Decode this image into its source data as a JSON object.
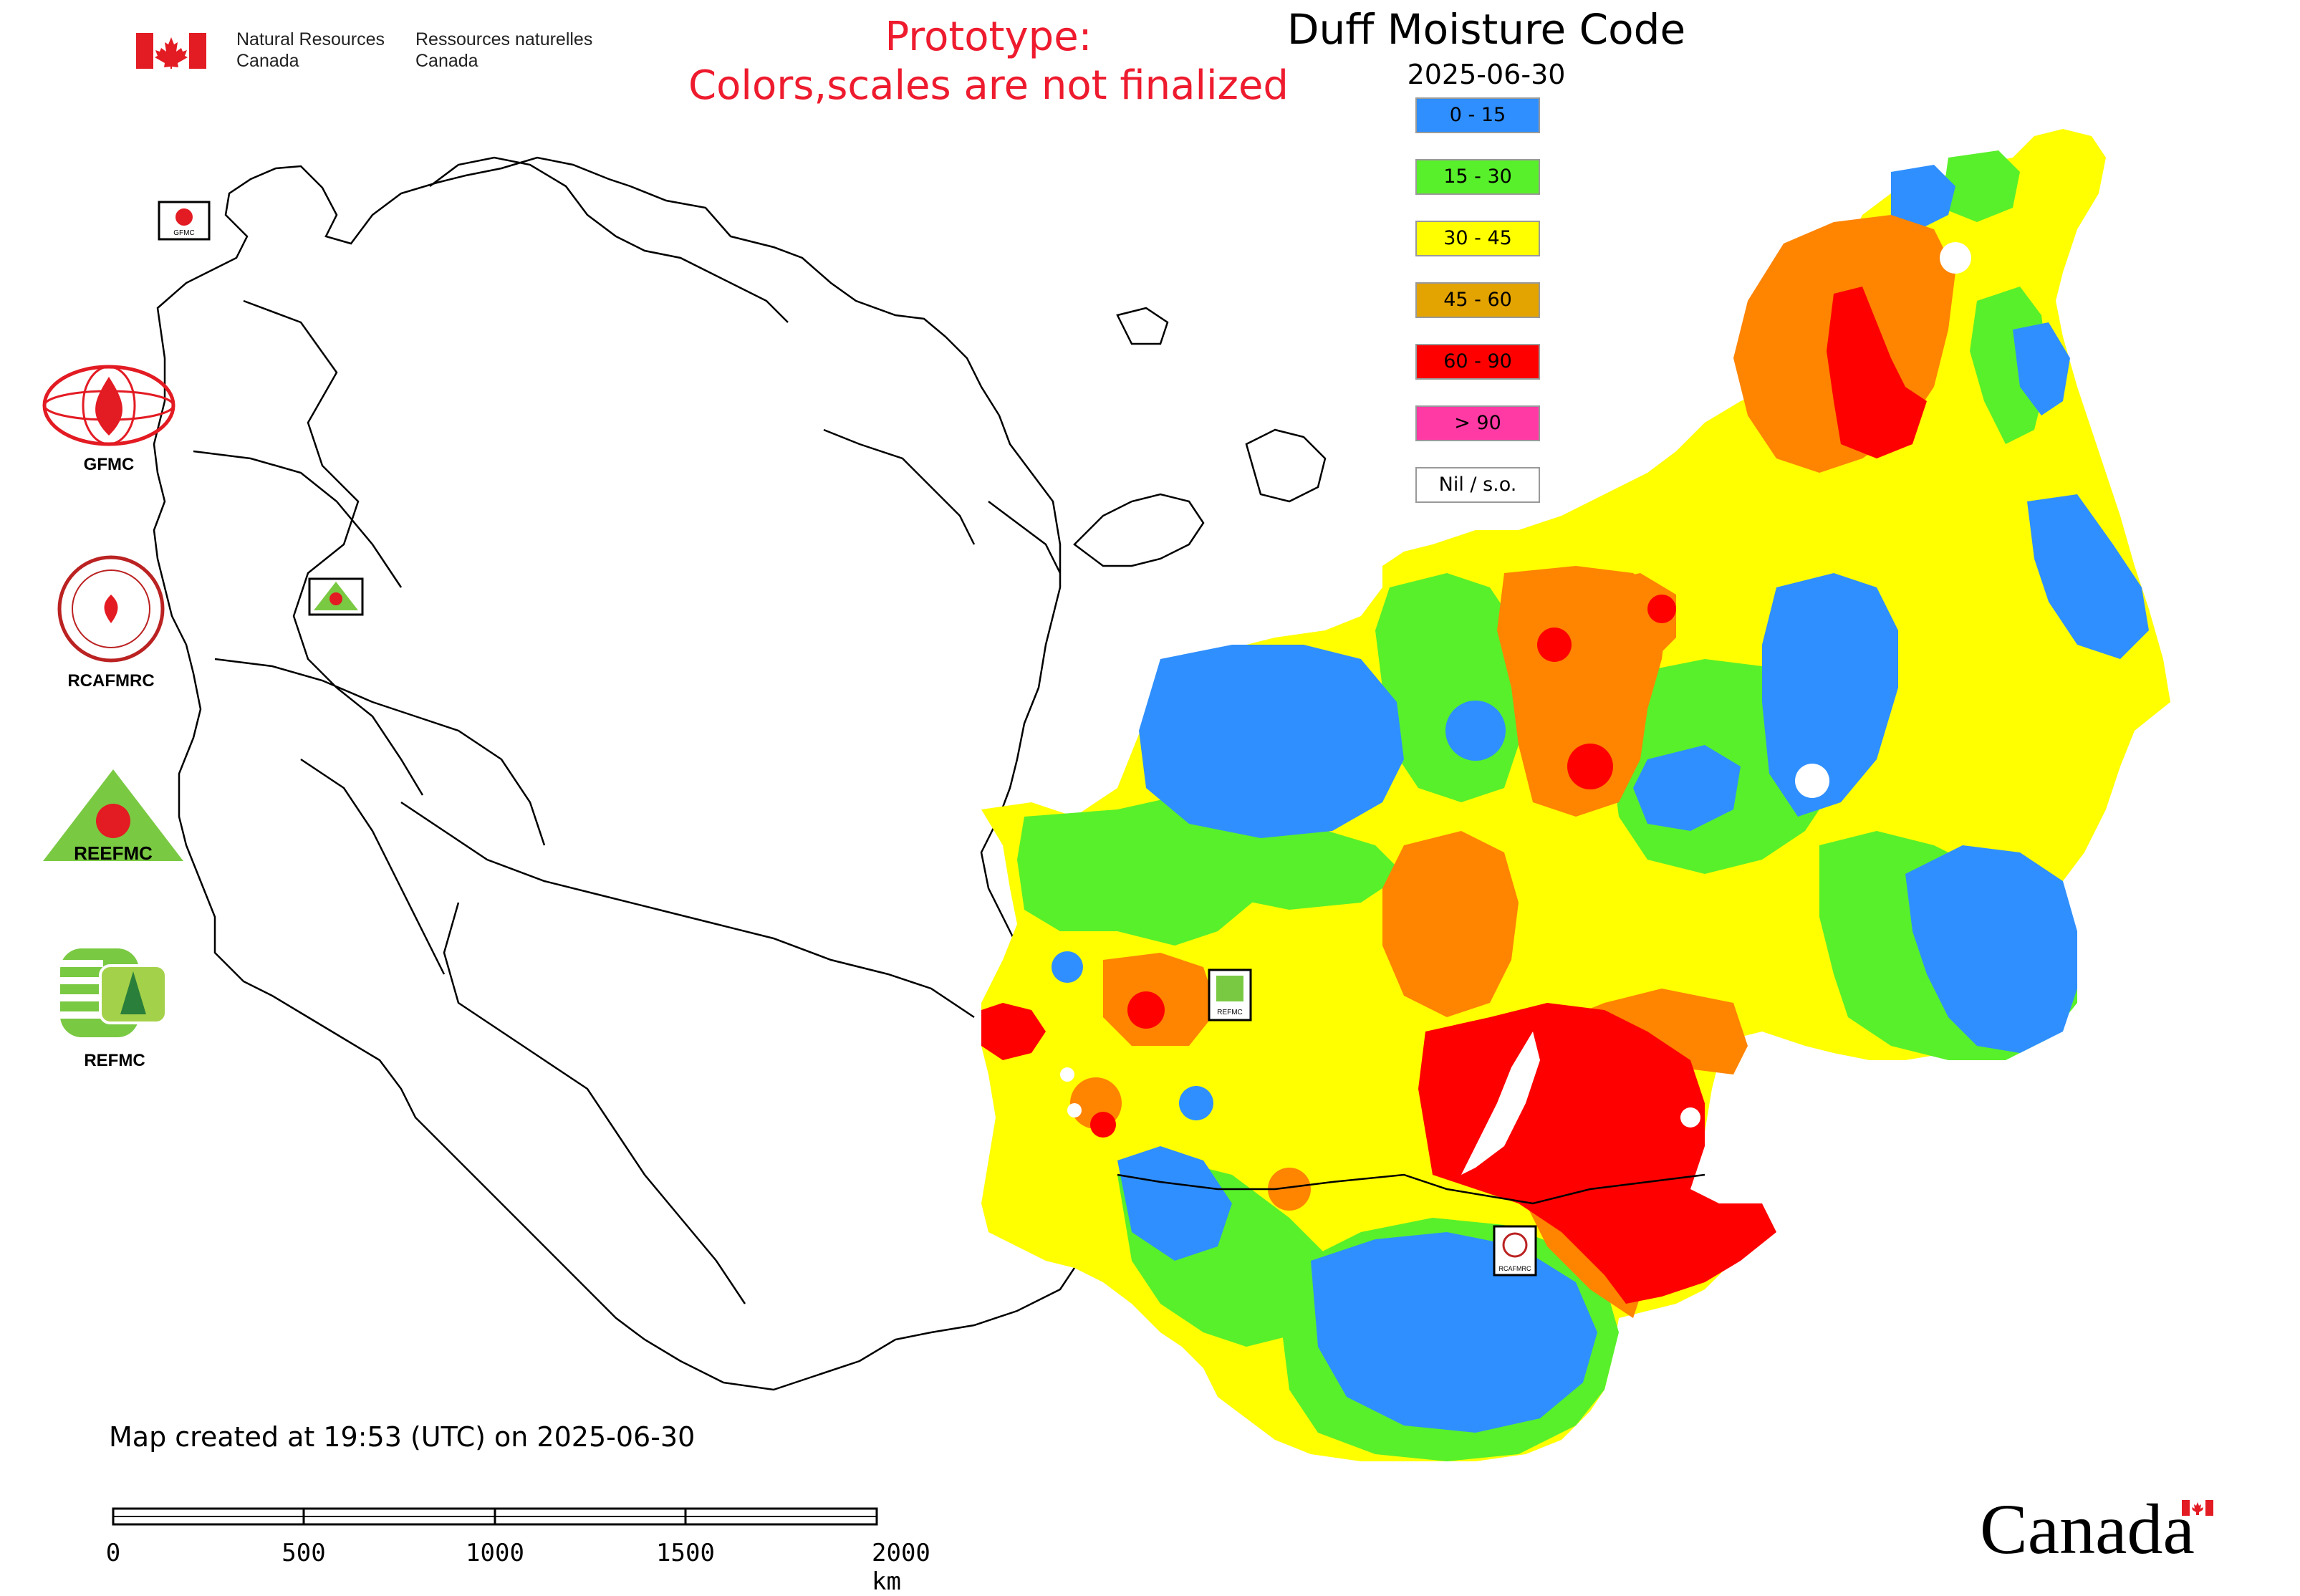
{
  "header": {
    "nrcan_en_line1": "Natural Resources",
    "nrcan_en_line2": "Canada",
    "nrcan_fr_line1": "Ressources naturelles",
    "nrcan_fr_line2": "Canada",
    "prototype_line1": "Prototype:",
    "prototype_line2": "Colors,scales are not finalized",
    "title": "Duff Moisture Code",
    "date": "2025-06-30"
  },
  "legend": {
    "items": [
      {
        "label": "0 - 15",
        "color": "#2f8fff"
      },
      {
        "label": "15 - 30",
        "color": "#58f02a"
      },
      {
        "label": "30 - 45",
        "color": "#ffff00"
      },
      {
        "label": "45 - 60",
        "color": "#e3a300"
      },
      {
        "label": "60 - 90",
        "color": "#ff0000"
      },
      {
        "label": "> 90",
        "color": "#ff3aa4"
      },
      {
        "label": "Nil / s.o.",
        "color": "#ffffff"
      }
    ]
  },
  "organizations": [
    {
      "name": "GFMC"
    },
    {
      "name": "RCAFMRC"
    },
    {
      "name": "REEFMC"
    },
    {
      "name": "REFMC"
    }
  ],
  "map_markers": [
    {
      "label": "GFMC"
    },
    {
      "label": "REEFMC"
    },
    {
      "label": "REFMC"
    },
    {
      "label": "RCAFMRC"
    }
  ],
  "footer": {
    "created": "Map created at 19:53 (UTC) on 2025-06-30",
    "scale_labels": [
      "0",
      "500",
      "1000",
      "1500",
      "2000 km"
    ],
    "canada_wordmark": "Canada"
  }
}
